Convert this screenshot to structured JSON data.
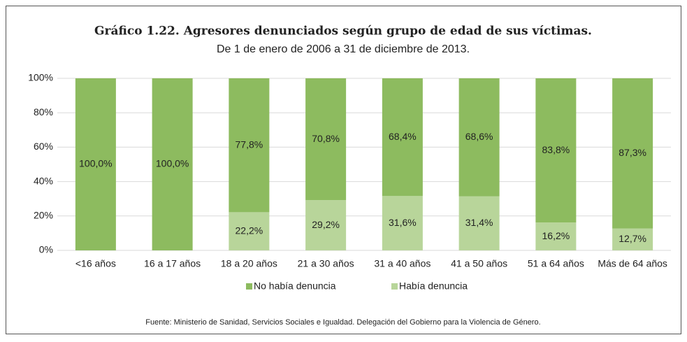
{
  "chart_data": {
    "type": "stacked_bar",
    "title": "Gráfico 1.22.  Agresores denunciados según grupo de edad de sus víctimas.",
    "subtitle": "De 1 de enero de 2006 a 31 de diciembre de 2013.",
    "source": "Fuente: Ministerio de Sanidad, Servicios Sociales e Igualdad. Delegación del Gobierno para la Violencia de Género.",
    "categories": [
      "<16 años",
      "16 a 17 años",
      "18 a 20 años",
      "21 a 30 años",
      "31 a 40 años",
      "41 a 50 años",
      "51 a 64 años",
      "Más de 64 años"
    ],
    "series": [
      {
        "name": "No había denuncia",
        "color": "#8dbb5f",
        "values": [
          100,
          100,
          77.8,
          70.8,
          68.4,
          68.6,
          83.8,
          87.3
        ],
        "value_labels": [
          "100,0%",
          "100,0%",
          "77,8%",
          "70,8%",
          "68,4%",
          "68,6%",
          "83,8%",
          "87,3%"
        ]
      },
      {
        "name": "Había denuncia",
        "color": "#b8d59a",
        "values": [
          0,
          0,
          22.2,
          29.2,
          31.6,
          31.4,
          16.2,
          12.7
        ],
        "value_labels": [
          null,
          null,
          "22,2%",
          "29,2%",
          "31,6%",
          "31,4%",
          "16,2%",
          "12,7%"
        ]
      }
    ],
    "ylim": [
      0,
      100
    ],
    "yticks": [
      {
        "value": 0,
        "label": "0%"
      },
      {
        "value": 20,
        "label": "20%"
      },
      {
        "value": 40,
        "label": "40%"
      },
      {
        "value": 60,
        "label": "60%"
      },
      {
        "value": 80,
        "label": "80%"
      },
      {
        "value": 100,
        "label": "100%"
      }
    ],
    "grid": true,
    "legend": "bottom"
  }
}
